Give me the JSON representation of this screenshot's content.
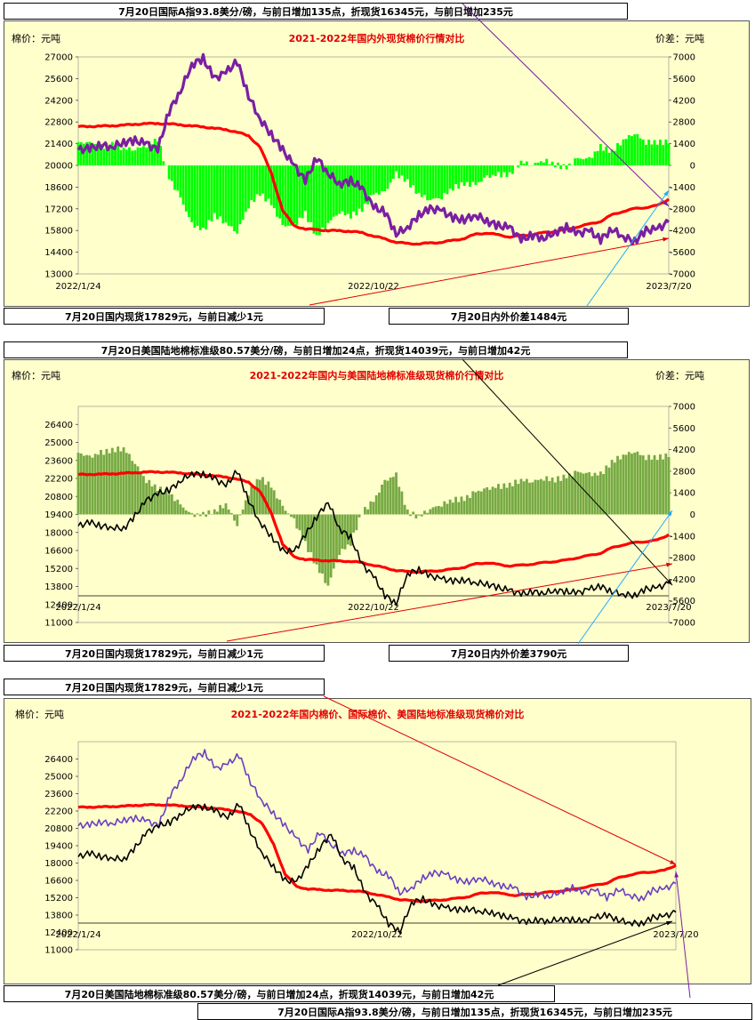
{
  "captions": {
    "c1_top": "7月20日国际A指93.8美分/磅，与前日增加135点，折现货16345元，与前日增加235元",
    "c1_bottom_left": "7月20日国内现货17829元，与前日减少1元",
    "c1_bottom_right": "7月20日内外价差1484元",
    "c2_top": "7月20日美国陆地棉标准级80.57美分/磅，与前日增加24点，折现货14039元，与前日增加42元",
    "c2_bottom_left": "7月20日国内现货17829元，与前日减少1元",
    "c2_bottom_right": "7月20日内外价差3790元",
    "c3_top": "7月20日国内现货17829元，与前日减少1元",
    "c3_bottom_1": "7月20日美国陆地棉标准级80.57美分/磅，与前日增加24点，折现货14039元，与前日增加42元",
    "c3_bottom_2": "7月20日国际A指93.8美分/磅，与前日增加135点，折现货16345元，与前日增加235元"
  },
  "colors": {
    "panel_bg": "#ffffcc",
    "domestic": "#ff0000",
    "a_index_1": "#7b1fa2",
    "a_index_3": "#6a3fbf",
    "us_upland": "#000000",
    "diff_bar_1": "#00ff00",
    "diff_bar_2": "#77aa44",
    "arrow_red": "#e00000",
    "arrow_blue": "#22aaff",
    "arrow_purple": "#7b1fa2"
  },
  "chart_data": [
    {
      "type": "line",
      "title": "2021-2022年国内外现货棉价行情对比",
      "ylabel_left": "棉价：元吨",
      "ylabel_right": "价差：元吨",
      "x_ticks": [
        "2022/1/24",
        "2022/10/22",
        "2023/7/20"
      ],
      "ylim_left": [
        13000,
        27000
      ],
      "yticks_left": [
        13000,
        14400,
        15800,
        17200,
        18600,
        20000,
        21400,
        22800,
        24200,
        25600,
        27000
      ],
      "ylim_right": [
        -7000,
        7000
      ],
      "yticks_right": [
        -7000,
        -5600,
        -4200,
        -2800,
        -1400,
        0,
        1400,
        2800,
        4200,
        5600,
        7000
      ],
      "series": [
        {
          "name": "国内现货",
          "axis": "left",
          "color": "#ff0000",
          "values": [
            22500,
            22520,
            22530,
            22560,
            22600,
            22650,
            22700,
            22700,
            22680,
            22620,
            22550,
            22480,
            22400,
            22300,
            22150,
            21900,
            21200,
            19500,
            17100,
            16100,
            15900,
            15850,
            15800,
            15780,
            15750,
            15650,
            15450,
            15250,
            15050,
            14950,
            14950,
            14980,
            15050,
            15150,
            15300,
            15550,
            15650,
            15500,
            15400,
            15450,
            15550,
            15650,
            15750,
            15850,
            16050,
            16200,
            16400,
            16800,
            17050,
            17200,
            17300,
            17400,
            17829
          ]
        },
        {
          "name": "国际A指折现货",
          "axis": "left",
          "color": "#7b1fa2",
          "values": [
            21000,
            21100,
            21300,
            21200,
            21500,
            21600,
            21400,
            21000,
            23500,
            24800,
            26500,
            26900,
            25600,
            26000,
            26700,
            24500,
            23000,
            22000,
            21000,
            20000,
            19000,
            20500,
            19500,
            18800,
            19000,
            18500,
            17300,
            17000,
            15600,
            16000,
            16800,
            17200,
            17100,
            16600,
            16500,
            16800,
            16400,
            16100,
            16000,
            15200,
            15500,
            15300,
            15700,
            16000,
            15600,
            15800,
            15200,
            15900,
            15400,
            15100,
            15800,
            15900,
            16345
          ]
        },
        {
          "name": "内外价差",
          "axis": "right",
          "type": "bar",
          "color": "#00ff00",
          "values": [
            1500,
            1400,
            1200,
            1360,
            1100,
            1050,
            1300,
            1700,
            -800,
            -2100,
            -3800,
            -4200,
            -3200,
            -3700,
            -4300,
            -2600,
            -1800,
            -2500,
            -3900,
            -3900,
            -3100,
            -4600,
            -3700,
            -3000,
            -3250,
            -2850,
            -1850,
            -1750,
            -550,
            -1050,
            -1850,
            -2200,
            -2050,
            -1450,
            -1200,
            -1250,
            -750,
            -600,
            -600,
            250,
            50,
            350,
            50,
            -150,
            450,
            400,
            1200,
            900,
            1650,
            2100,
            1500,
            1500,
            1484
          ]
        }
      ]
    },
    {
      "type": "line",
      "title": "2021-2022年国内与美国陆地棉标准级现货棉价行情对比",
      "ylabel_left": "棉价：元吨",
      "ylabel_right": "价差：元吨",
      "x_ticks": [
        "2022/1/24",
        "2022/10/22",
        "2023/7/20"
      ],
      "ylim_left": [
        11000,
        27800
      ],
      "yticks_left": [
        11000,
        12400,
        13800,
        15200,
        16600,
        18000,
        19400,
        20800,
        22200,
        23600,
        25000,
        26400
      ],
      "ylim_right": [
        -7000,
        7000
      ],
      "yticks_right": [
        -7000,
        -5600,
        -4200,
        -2800,
        -1400,
        0,
        1400,
        2800,
        4200,
        5600,
        7000
      ],
      "series": [
        {
          "name": "国内现货",
          "axis": "left",
          "color": "#ff0000",
          "values": [
            22500,
            22520,
            22530,
            22560,
            22600,
            22650,
            22700,
            22700,
            22680,
            22620,
            22550,
            22480,
            22400,
            22300,
            22150,
            21900,
            21200,
            19500,
            17100,
            16100,
            15900,
            15850,
            15800,
            15780,
            15750,
            15650,
            15450,
            15250,
            15050,
            14950,
            14950,
            14980,
            15050,
            15150,
            15300,
            15550,
            15650,
            15500,
            15400,
            15450,
            15550,
            15650,
            15750,
            15850,
            16050,
            16200,
            16400,
            16800,
            17050,
            17200,
            17300,
            17400,
            17829
          ]
        },
        {
          "name": "美国陆地棉标准级折现货",
          "axis": "left",
          "color": "#000000",
          "values": [
            18500,
            18800,
            18500,
            18400,
            18300,
            19300,
            20500,
            21000,
            21300,
            22000,
            22600,
            22500,
            22200,
            21600,
            22800,
            20500,
            18800,
            17700,
            16600,
            16500,
            17800,
            19200,
            20400,
            18300,
            17600,
            15500,
            14600,
            13100,
            12500,
            14800,
            15100,
            14600,
            14400,
            14200,
            14300,
            14100,
            14000,
            13700,
            13500,
            13200,
            13400,
            13300,
            13500,
            13400,
            13300,
            13600,
            13800,
            13400,
            13200,
            13100,
            13600,
            13700,
            14039
          ]
        },
        {
          "name": "内外价差",
          "axis": "right",
          "type": "bar",
          "color": "#77aa44",
          "values": [
            4000,
            3700,
            4000,
            4160,
            4300,
            3350,
            2200,
            1700,
            1380,
            620,
            -50,
            -20,
            200,
            700,
            -650,
            1400,
            2400,
            1800,
            500,
            -400,
            -1900,
            -3350,
            -4600,
            -2500,
            -1850,
            150,
            850,
            2150,
            2550,
            150,
            -150,
            380,
            650,
            950,
            1000,
            1450,
            1650,
            1800,
            1900,
            2250,
            2150,
            2350,
            2250,
            2450,
            2750,
            2600,
            2600,
            3400,
            3850,
            4100,
            3700,
            3700,
            3790
          ]
        }
      ]
    },
    {
      "type": "line",
      "title": "2021-2022年国内棉价、国际棉价、美国陆地标准级现货棉价对比",
      "ylabel_left": "棉价：元吨",
      "x_ticks": [
        "2022/1/24",
        "2022/10/22",
        "2023/7/20"
      ],
      "ylim_left": [
        11000,
        27800
      ],
      "yticks_left": [
        11000,
        12400,
        13800,
        15200,
        16600,
        18000,
        19400,
        20800,
        22200,
        23600,
        25000,
        26400
      ],
      "series": [
        {
          "name": "国内现货",
          "color": "#ff0000",
          "values": [
            22500,
            22520,
            22530,
            22560,
            22600,
            22650,
            22700,
            22700,
            22680,
            22620,
            22550,
            22480,
            22400,
            22300,
            22150,
            21900,
            21200,
            19500,
            17100,
            16100,
            15900,
            15850,
            15800,
            15780,
            15750,
            15650,
            15450,
            15250,
            15050,
            14950,
            14950,
            14980,
            15050,
            15150,
            15300,
            15550,
            15650,
            15500,
            15400,
            15450,
            15550,
            15650,
            15750,
            15850,
            16050,
            16200,
            16400,
            16800,
            17050,
            17200,
            17300,
            17400,
            17829
          ]
        },
        {
          "name": "国际A指折现货",
          "color": "#6a3fbf",
          "values": [
            21000,
            21100,
            21300,
            21200,
            21500,
            21600,
            21400,
            21000,
            23500,
            24800,
            26500,
            26900,
            25600,
            26000,
            26700,
            24500,
            23000,
            22000,
            21000,
            20000,
            19000,
            20500,
            19500,
            18800,
            19000,
            18500,
            17300,
            17000,
            15600,
            16000,
            16800,
            17200,
            17100,
            16600,
            16500,
            16800,
            16400,
            16100,
            16000,
            15200,
            15500,
            15300,
            15700,
            16000,
            15600,
            15800,
            15200,
            15900,
            15400,
            15100,
            15800,
            15900,
            16345
          ]
        },
        {
          "name": "美国陆地棉标准级折现货",
          "color": "#000000",
          "values": [
            18500,
            18800,
            18500,
            18400,
            18300,
            19300,
            20500,
            21000,
            21300,
            22000,
            22600,
            22500,
            22200,
            21600,
            22800,
            20500,
            18800,
            17700,
            16600,
            16500,
            17800,
            19200,
            20400,
            18300,
            17600,
            15500,
            14600,
            13100,
            12500,
            14800,
            15100,
            14600,
            14400,
            14200,
            14300,
            14100,
            14000,
            13700,
            13500,
            13200,
            13400,
            13300,
            13500,
            13400,
            13300,
            13600,
            13800,
            13400,
            13200,
            13100,
            13600,
            13700,
            14039
          ]
        }
      ]
    }
  ]
}
